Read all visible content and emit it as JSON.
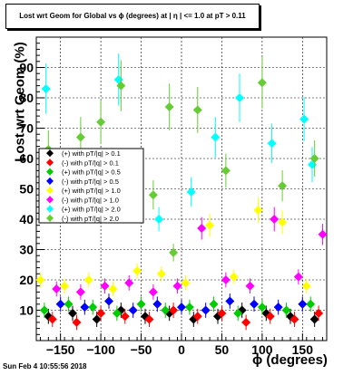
{
  "chart_data": {
    "type": "scatter",
    "title": "Lost wrt Geom for Global vs ϕ (degrees) at | η | <= 1.0 at pT > 0.11",
    "xlabel": "ϕ (degrees)",
    "ylabel": "Lost wrt Geom (%)",
    "xlim": [
      -180,
      180
    ],
    "ylim": [
      0,
      100
    ],
    "x_ticks": [
      "−150",
      "−100",
      "−50",
      "0",
      "50",
      "100",
      "150"
    ],
    "y_ticks": [
      "10",
      "20",
      "30",
      "40",
      "50",
      "60",
      "70",
      "80",
      "90"
    ],
    "grid": true,
    "legend_position": "left",
    "series": [
      {
        "name": "(+) with pT/|q| > 0.1",
        "color": "#000000",
        "x": [
          -165,
          -135,
          -105,
          -75,
          -45,
          -15,
          15,
          45,
          75,
          105,
          135,
          165
        ],
        "y": [
          8,
          9,
          7,
          10,
          8,
          9,
          7,
          8,
          10,
          9,
          8,
          7
        ]
      },
      {
        "name": "(-) with pT/|q| > 0.1",
        "color": "#ff0000",
        "x": [
          -160,
          -130,
          -100,
          -70,
          -40,
          -10,
          20,
          50,
          80,
          110,
          140,
          170
        ],
        "y": [
          7,
          6,
          9,
          8,
          7,
          10,
          8,
          9,
          6,
          8,
          7,
          9
        ]
      },
      {
        "name": "(+) with pT/|q| > 0.5",
        "color": "#00cc00",
        "x": [
          -170,
          -140,
          -110,
          -80,
          -50,
          -20,
          10,
          40,
          70,
          100,
          130,
          160
        ],
        "y": [
          10,
          12,
          11,
          9,
          12,
          10,
          11,
          12,
          9,
          11,
          10,
          12
        ]
      },
      {
        "name": "(-) with pT/|q| > 0.5",
        "color": "#0000ff",
        "x": [
          -150,
          -120,
          -90,
          -60,
          -30,
          0,
          30,
          60,
          90,
          120,
          150
        ],
        "y": [
          12,
          11,
          13,
          10,
          12,
          11,
          10,
          13,
          12,
          11,
          12
        ]
      },
      {
        "name": "(+) with pT/|q| > 1.0",
        "color": "#ffff00",
        "x": [
          -175,
          -145,
          -115,
          -85,
          -55,
          -25,
          5,
          35,
          65,
          95,
          125,
          155
        ],
        "y": [
          20,
          18,
          20,
          17,
          23,
          22,
          19,
          38,
          21,
          43,
          39,
          18
        ]
      },
      {
        "name": "(-) with pT/|q| > 1.0",
        "color": "#ff00ff",
        "x": [
          -155,
          -125,
          -95,
          -65,
          -35,
          -5,
          25,
          55,
          85,
          115,
          145,
          175
        ],
        "y": [
          17,
          16,
          18,
          19,
          16,
          18,
          37,
          20,
          18,
          40,
          21,
          35
        ]
      },
      {
        "name": "(+) with pT/|q| > 2.0",
        "color": "#00ffff",
        "x": [
          -168,
          -78,
          -28,
          12,
          42,
          72,
          112,
          152,
          162
        ],
        "y": [
          83,
          86,
          40,
          49,
          67,
          80,
          65,
          73,
          58
        ]
      },
      {
        "name": "(-) with pT/|q| > 2.0",
        "color": "#66cc33",
        "x": [
          -165,
          -125,
          -100,
          -75,
          -35,
          -15,
          -10,
          20,
          55,
          100,
          125,
          165
        ],
        "y": [
          63,
          67,
          72,
          84,
          48,
          77,
          29,
          76,
          56,
          85,
          51,
          60
        ]
      }
    ]
  },
  "footer": {
    "timestamp": "Sun Feb  4 10:55:56 2018"
  }
}
